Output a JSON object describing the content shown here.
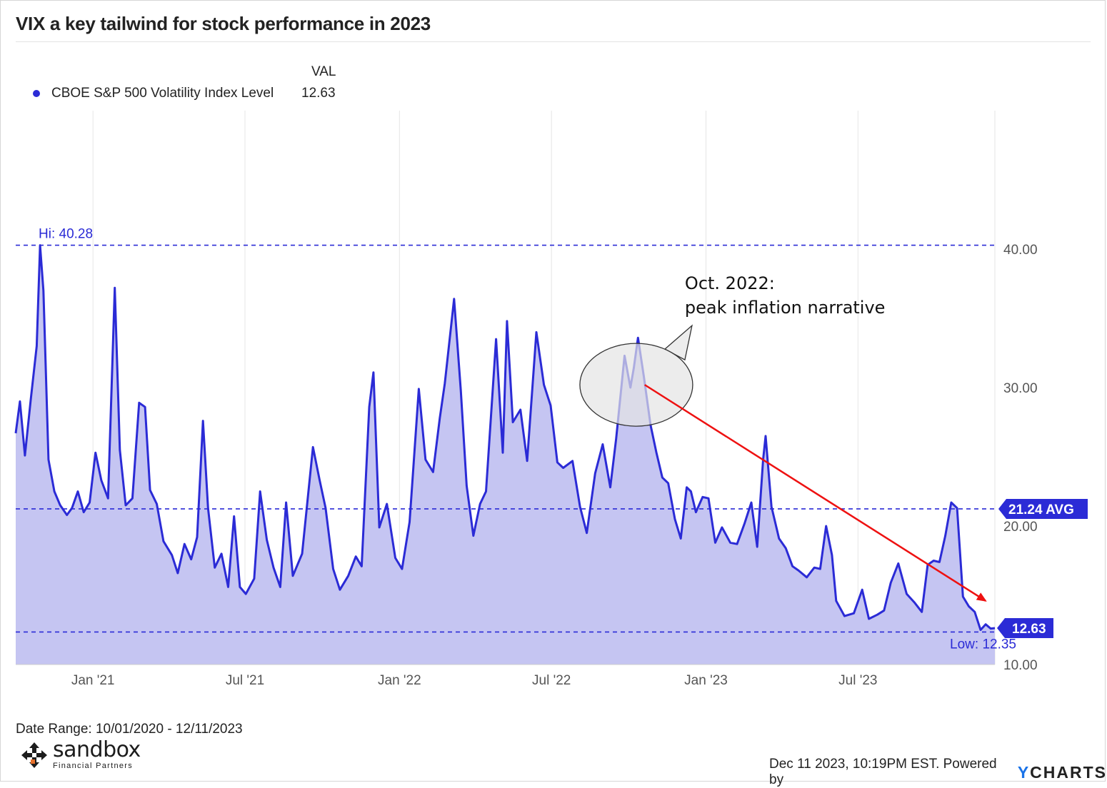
{
  "title": "VIX a key tailwind for stock performance in 2023",
  "legend": {
    "column_header": "VAL",
    "series_name": "CBOE S&P 500 Volatility Index Level",
    "series_value": "12.63",
    "dot_color": "#2b2bd6"
  },
  "footer": {
    "date_range": "Date Range: 10/01/2020 - 12/11/2023",
    "stamp": "Dec 11 2023, 10:19PM EST. Powered by",
    "brand_y": "Y",
    "brand_rest": "CHARTS",
    "logo_name": "sandbox",
    "logo_sub": "Financial Partners"
  },
  "chart_data": {
    "type": "area",
    "title": "VIX a key tailwind for stock performance in 2023",
    "x_start": "2020-10-01",
    "x_end": "2023-12-11",
    "x_ticks": [
      {
        "date": "2021-01-01",
        "label": "Jan '21"
      },
      {
        "date": "2021-07-01",
        "label": "Jul '21"
      },
      {
        "date": "2022-01-01",
        "label": "Jan '22"
      },
      {
        "date": "2022-07-01",
        "label": "Jul '22"
      },
      {
        "date": "2023-01-01",
        "label": "Jan '23"
      },
      {
        "date": "2023-07-01",
        "label": "Jul '23"
      }
    ],
    "ylim": [
      10,
      50
    ],
    "y_ticks": [
      {
        "value": 10,
        "label": "10.00"
      },
      {
        "value": 20,
        "label": "20.00"
      },
      {
        "value": 30,
        "label": "30.00"
      },
      {
        "value": 40,
        "label": "40.00"
      }
    ],
    "grid": true,
    "series": [
      {
        "name": "CBOE S&P 500 Volatility Index Level",
        "color": "#2b2bd6",
        "fill": "#c5c5f2",
        "points": [
          [
            "2020-10-01",
            26.7
          ],
          [
            "2020-10-06",
            29.0
          ],
          [
            "2020-10-12",
            25.1
          ],
          [
            "2020-10-19",
            29.2
          ],
          [
            "2020-10-26",
            33.0
          ],
          [
            "2020-10-30",
            40.28
          ],
          [
            "2020-11-03",
            37.0
          ],
          [
            "2020-11-09",
            24.8
          ],
          [
            "2020-11-16",
            22.5
          ],
          [
            "2020-11-23",
            21.5
          ],
          [
            "2020-12-01",
            20.8
          ],
          [
            "2020-12-07",
            21.3
          ],
          [
            "2020-12-14",
            22.5
          ],
          [
            "2020-12-21",
            21.0
          ],
          [
            "2020-12-28",
            21.7
          ],
          [
            "2021-01-04",
            25.3
          ],
          [
            "2021-01-11",
            23.3
          ],
          [
            "2021-01-19",
            22.0
          ],
          [
            "2021-01-27",
            37.2
          ],
          [
            "2021-02-02",
            25.5
          ],
          [
            "2021-02-09",
            21.5
          ],
          [
            "2021-02-17",
            22.0
          ],
          [
            "2021-02-25",
            28.9
          ],
          [
            "2021-03-04",
            28.6
          ],
          [
            "2021-03-10",
            22.6
          ],
          [
            "2021-03-18",
            21.6
          ],
          [
            "2021-03-26",
            18.9
          ],
          [
            "2021-04-05",
            17.9
          ],
          [
            "2021-04-12",
            16.6
          ],
          [
            "2021-04-20",
            18.7
          ],
          [
            "2021-04-28",
            17.6
          ],
          [
            "2021-05-05",
            19.2
          ],
          [
            "2021-05-12",
            27.6
          ],
          [
            "2021-05-18",
            21.3
          ],
          [
            "2021-05-26",
            17.0
          ],
          [
            "2021-06-03",
            18.0
          ],
          [
            "2021-06-11",
            15.6
          ],
          [
            "2021-06-18",
            20.7
          ],
          [
            "2021-06-25",
            15.6
          ],
          [
            "2021-07-02",
            15.1
          ],
          [
            "2021-07-12",
            16.2
          ],
          [
            "2021-07-19",
            22.5
          ],
          [
            "2021-07-27",
            19.0
          ],
          [
            "2021-08-04",
            17.0
          ],
          [
            "2021-08-12",
            15.6
          ],
          [
            "2021-08-19",
            21.7
          ],
          [
            "2021-08-27",
            16.4
          ],
          [
            "2021-09-07",
            18.0
          ],
          [
            "2021-09-20",
            25.7
          ],
          [
            "2021-09-28",
            23.3
          ],
          [
            "2021-10-05",
            21.3
          ],
          [
            "2021-10-14",
            16.9
          ],
          [
            "2021-10-22",
            15.4
          ],
          [
            "2021-11-01",
            16.4
          ],
          [
            "2021-11-10",
            17.8
          ],
          [
            "2021-11-17",
            17.1
          ],
          [
            "2021-11-26",
            28.6
          ],
          [
            "2021-12-01",
            31.1
          ],
          [
            "2021-12-08",
            19.9
          ],
          [
            "2021-12-17",
            21.6
          ],
          [
            "2021-12-27",
            17.7
          ],
          [
            "2022-01-04",
            16.9
          ],
          [
            "2022-01-13",
            20.3
          ],
          [
            "2022-01-24",
            29.9
          ],
          [
            "2022-02-01",
            24.8
          ],
          [
            "2022-02-10",
            23.9
          ],
          [
            "2022-02-18",
            27.8
          ],
          [
            "2022-02-24",
            30.3
          ],
          [
            "2022-03-07",
            36.4
          ],
          [
            "2022-03-15",
            29.8
          ],
          [
            "2022-03-22",
            22.9
          ],
          [
            "2022-03-30",
            19.3
          ],
          [
            "2022-04-07",
            21.6
          ],
          [
            "2022-04-14",
            22.5
          ],
          [
            "2022-04-26",
            33.5
          ],
          [
            "2022-05-04",
            25.3
          ],
          [
            "2022-05-09",
            34.8
          ],
          [
            "2022-05-16",
            27.5
          ],
          [
            "2022-05-25",
            28.4
          ],
          [
            "2022-06-02",
            24.7
          ],
          [
            "2022-06-13",
            34.0
          ],
          [
            "2022-06-22",
            30.2
          ],
          [
            "2022-06-30",
            28.7
          ],
          [
            "2022-07-08",
            24.6
          ],
          [
            "2022-07-15",
            24.2
          ],
          [
            "2022-07-26",
            24.7
          ],
          [
            "2022-08-04",
            21.4
          ],
          [
            "2022-08-12",
            19.5
          ],
          [
            "2022-08-22",
            23.8
          ],
          [
            "2022-08-31",
            25.9
          ],
          [
            "2022-09-09",
            22.8
          ],
          [
            "2022-09-16",
            26.3
          ],
          [
            "2022-09-26",
            32.3
          ],
          [
            "2022-10-03",
            30.0
          ],
          [
            "2022-10-07",
            31.4
          ],
          [
            "2022-10-12",
            33.6
          ],
          [
            "2022-10-19",
            30.8
          ],
          [
            "2022-10-27",
            27.3
          ],
          [
            "2022-11-03",
            25.3
          ],
          [
            "2022-11-10",
            23.5
          ],
          [
            "2022-11-17",
            23.1
          ],
          [
            "2022-11-25",
            20.5
          ],
          [
            "2022-12-02",
            19.1
          ],
          [
            "2022-12-09",
            22.8
          ],
          [
            "2022-12-14",
            22.5
          ],
          [
            "2022-12-20",
            21.0
          ],
          [
            "2022-12-28",
            22.1
          ],
          [
            "2023-01-04",
            22.0
          ],
          [
            "2023-01-12",
            18.8
          ],
          [
            "2023-01-20",
            19.9
          ],
          [
            "2023-01-30",
            18.8
          ],
          [
            "2023-02-07",
            18.7
          ],
          [
            "2023-02-16",
            20.2
          ],
          [
            "2023-02-24",
            21.7
          ],
          [
            "2023-03-03",
            18.5
          ],
          [
            "2023-03-10",
            24.8
          ],
          [
            "2023-03-13",
            26.5
          ],
          [
            "2023-03-20",
            21.4
          ],
          [
            "2023-03-29",
            19.1
          ],
          [
            "2023-04-06",
            18.4
          ],
          [
            "2023-04-14",
            17.1
          ],
          [
            "2023-04-21",
            16.8
          ],
          [
            "2023-05-01",
            16.3
          ],
          [
            "2023-05-10",
            17.0
          ],
          [
            "2023-05-17",
            16.9
          ],
          [
            "2023-05-24",
            20.0
          ],
          [
            "2023-05-31",
            17.9
          ],
          [
            "2023-06-05",
            14.6
          ],
          [
            "2023-06-15",
            13.5
          ],
          [
            "2023-06-26",
            13.7
          ],
          [
            "2023-07-06",
            15.4
          ],
          [
            "2023-07-14",
            13.3
          ],
          [
            "2023-07-24",
            13.6
          ],
          [
            "2023-08-01",
            13.9
          ],
          [
            "2023-08-09",
            15.9
          ],
          [
            "2023-08-18",
            17.3
          ],
          [
            "2023-08-28",
            15.1
          ],
          [
            "2023-09-06",
            14.5
          ],
          [
            "2023-09-15",
            13.8
          ],
          [
            "2023-09-22",
            17.2
          ],
          [
            "2023-09-29",
            17.5
          ],
          [
            "2023-10-06",
            17.4
          ],
          [
            "2023-10-13",
            19.3
          ],
          [
            "2023-10-20",
            21.7
          ],
          [
            "2023-10-27",
            21.3
          ],
          [
            "2023-11-03",
            14.9
          ],
          [
            "2023-11-10",
            14.2
          ],
          [
            "2023-11-17",
            13.8
          ],
          [
            "2023-11-24",
            12.5
          ],
          [
            "2023-11-30",
            12.9
          ],
          [
            "2023-12-06",
            12.6
          ],
          [
            "2023-12-11",
            12.63
          ]
        ]
      }
    ],
    "reference_lines": [
      {
        "value": 40.28,
        "label": "Hi: 40.28"
      },
      {
        "value": 21.24,
        "label": "21.24 AVG"
      },
      {
        "value": 12.35,
        "label": "Low: 12.35"
      }
    ],
    "last_value_label": "12.63",
    "annotations": {
      "callout_line1": "Oct. 2022:",
      "callout_line2": "peak inflation narrative",
      "trend_arrow_color": "#ee1111",
      "trend_from": {
        "date": "2022-10-20",
        "value": 30.2
      },
      "trend_to": {
        "date": "2023-11-30",
        "value": 14.6
      }
    }
  }
}
